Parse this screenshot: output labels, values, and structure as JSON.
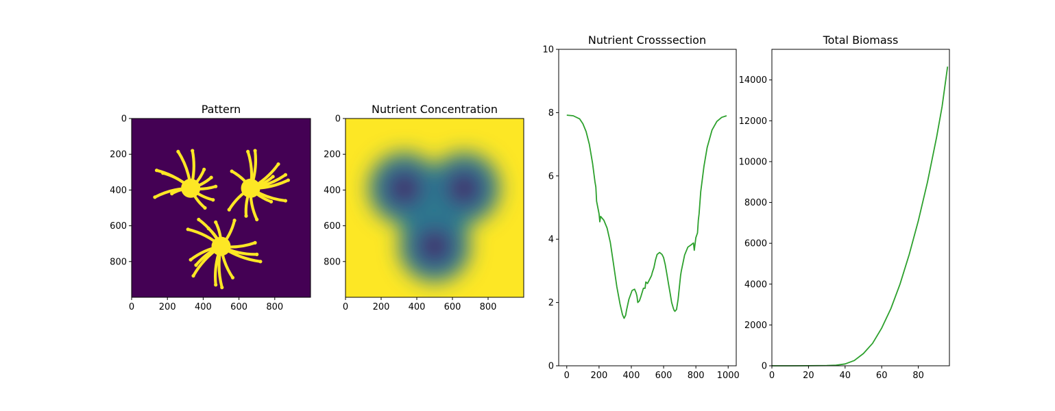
{
  "chart_data": [
    {
      "type": "heatmap",
      "title": "Pattern",
      "colormap": "viridis",
      "xlim": [
        0,
        1000
      ],
      "ylim": [
        1000,
        0
      ],
      "xticks": [
        0,
        200,
        400,
        600,
        800
      ],
      "yticks": [
        0,
        200,
        400,
        600,
        800
      ],
      "background_color": "#440154",
      "foreground_color": "#fde725",
      "colonies": [
        {
          "center": [
            330,
            390
          ],
          "branch_tips": [
            [
              140,
              290
            ],
            [
              175,
              305
            ],
            [
              225,
              420
            ],
            [
              130,
              440
            ],
            [
              260,
              185
            ],
            [
              340,
              180
            ],
            [
              405,
              285
            ],
            [
              445,
              330
            ],
            [
              470,
              380
            ],
            [
              455,
              455
            ],
            [
              410,
              500
            ]
          ]
        },
        {
          "center": [
            665,
            390
          ],
          "branch_tips": [
            [
              560,
              295
            ],
            [
              650,
              185
            ],
            [
              690,
              180
            ],
            [
              790,
              325
            ],
            [
              820,
              255
            ],
            [
              860,
              315
            ],
            [
              875,
              345
            ],
            [
              860,
              460
            ],
            [
              780,
              465
            ],
            [
              700,
              565
            ],
            [
              640,
              545
            ],
            [
              545,
              510
            ]
          ]
        },
        {
          "center": [
            500,
            715
          ],
          "branch_tips": [
            [
              315,
              620
            ],
            [
              375,
              565
            ],
            [
              430,
              615
            ],
            [
              470,
              580
            ],
            [
              575,
              570
            ],
            [
              690,
              695
            ],
            [
              700,
              760
            ],
            [
              720,
              800
            ],
            [
              565,
              890
            ],
            [
              505,
              945
            ],
            [
              470,
              930
            ],
            [
              360,
              820
            ],
            [
              330,
              790
            ],
            [
              345,
              880
            ]
          ]
        }
      ]
    },
    {
      "type": "heatmap",
      "title": "Nutrient Concentration",
      "colormap": "viridis",
      "xlim": [
        0,
        1000
      ],
      "ylim": [
        1000,
        0
      ],
      "xticks": [
        0,
        200,
        400,
        600,
        800
      ],
      "yticks": [
        0,
        200,
        400,
        600,
        800
      ],
      "background_color": "#fde725",
      "depleted_color": "#440154",
      "depletion_centers": [
        [
          330,
          390
        ],
        [
          665,
          390
        ],
        [
          500,
          715
        ]
      ]
    },
    {
      "type": "line",
      "title": "Nutrient Crosssection",
      "color": "#2ca02c",
      "xlim": [
        -50,
        1050
      ],
      "ylim": [
        0,
        10
      ],
      "xticks": [
        0,
        200,
        400,
        600,
        800,
        1000
      ],
      "yticks": [
        0,
        2,
        4,
        6,
        8,
        10
      ],
      "x": [
        0,
        40,
        80,
        100,
        120,
        140,
        160,
        175,
        180,
        185,
        200,
        205,
        210,
        230,
        250,
        270,
        290,
        310,
        330,
        345,
        355,
        365,
        370,
        385,
        405,
        420,
        430,
        435,
        440,
        450,
        460,
        475,
        485,
        490,
        500,
        510,
        525,
        530,
        540,
        550,
        560,
        575,
        590,
        600,
        610,
        620,
        630,
        640,
        650,
        660,
        665,
        670,
        680,
        690,
        700,
        705,
        710,
        720,
        730,
        750,
        770,
        785,
        790,
        800,
        810,
        815,
        820,
        830,
        850,
        870,
        900,
        930,
        960,
        990
      ],
      "y": [
        7.92,
        7.9,
        7.8,
        7.65,
        7.4,
        7.0,
        6.4,
        5.8,
        5.65,
        5.2,
        4.8,
        4.55,
        4.72,
        4.6,
        4.35,
        3.9,
        3.2,
        2.5,
        1.95,
        1.62,
        1.5,
        1.6,
        1.75,
        2.1,
        2.38,
        2.42,
        2.3,
        2.2,
        2.0,
        2.05,
        2.2,
        2.45,
        2.45,
        2.65,
        2.6,
        2.7,
        2.85,
        2.95,
        3.1,
        3.35,
        3.52,
        3.58,
        3.52,
        3.42,
        3.2,
        2.9,
        2.6,
        2.3,
        2.0,
        1.82,
        1.75,
        1.72,
        1.78,
        2.1,
        2.6,
        2.85,
        3.0,
        3.25,
        3.5,
        3.75,
        3.82,
        3.88,
        3.65,
        4.05,
        4.2,
        4.6,
        4.8,
        5.5,
        6.3,
        6.9,
        7.45,
        7.72,
        7.85,
        7.9
      ]
    },
    {
      "type": "line",
      "title": "Total Biomass",
      "color": "#2ca02c",
      "xlim": [
        0,
        97
      ],
      "ylim": [
        0,
        15500
      ],
      "xticks": [
        0,
        20,
        40,
        60,
        80
      ],
      "yticks": [
        0,
        2000,
        4000,
        6000,
        8000,
        10000,
        12000,
        14000
      ],
      "x": [
        0,
        10,
        20,
        30,
        35,
        40,
        45,
        50,
        55,
        60,
        65,
        70,
        75,
        80,
        85,
        90,
        93,
        96
      ],
      "y": [
        0,
        1,
        3,
        12,
        30,
        90,
        260,
        600,
        1100,
        1850,
        2800,
        4000,
        5450,
        7100,
        9000,
        11200,
        12700,
        14650
      ]
    }
  ]
}
